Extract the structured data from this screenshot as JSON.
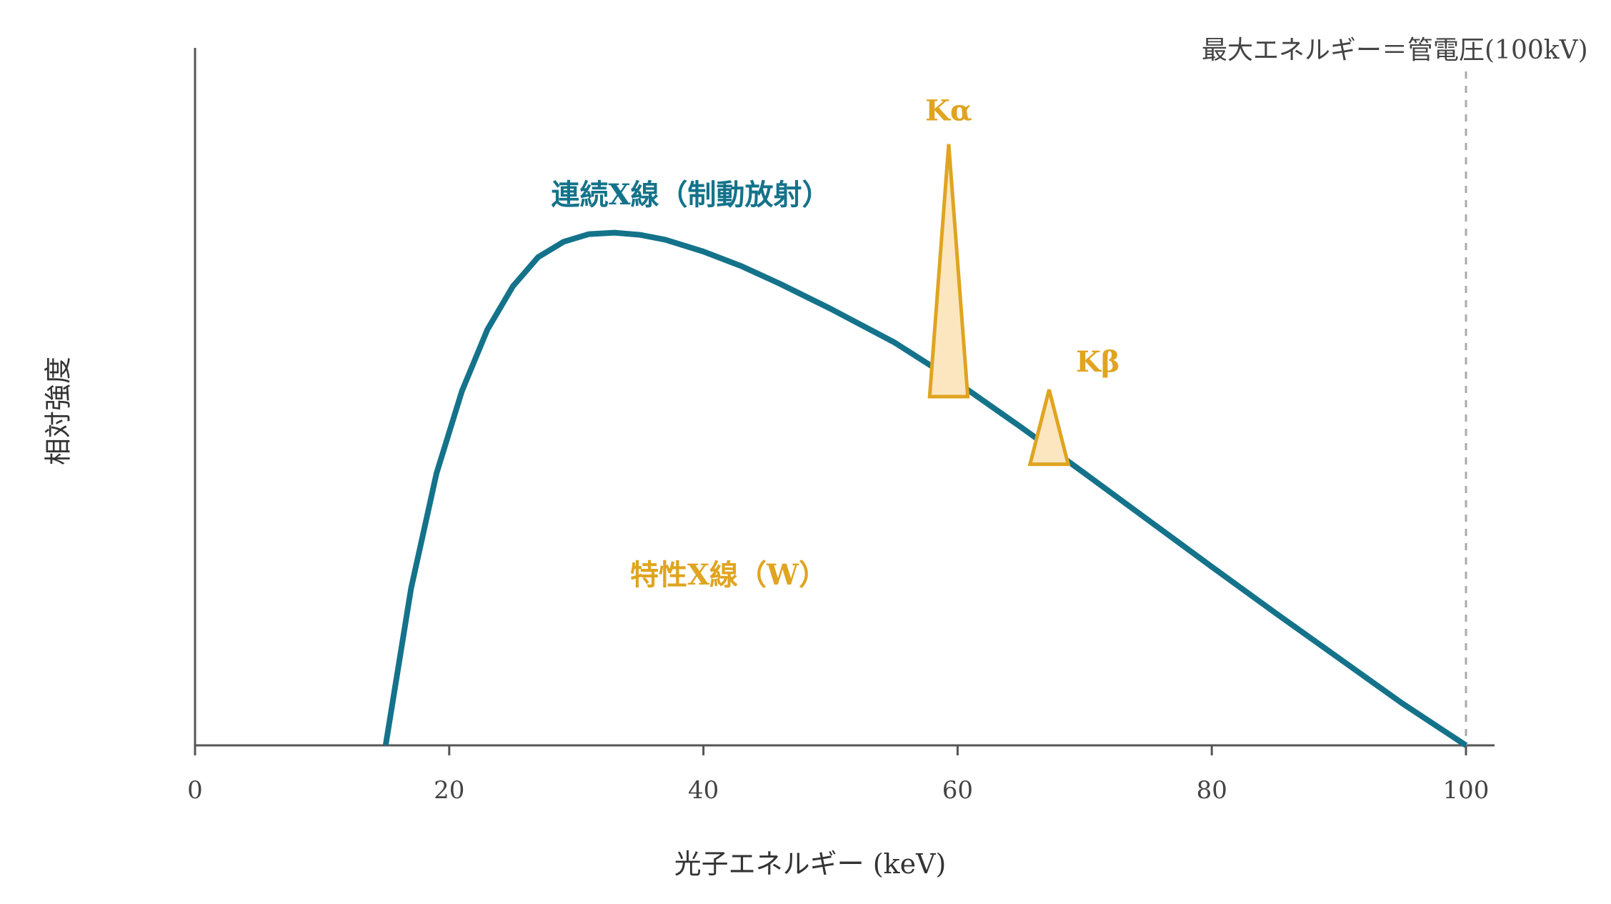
{
  "chart_data": {
    "type": "line",
    "title": "",
    "xlabel": "光子エネルギー (keV)",
    "ylabel": "相対強度",
    "xlim": [
      0,
      100
    ],
    "ylim": [
      0,
      1
    ],
    "xticks": [
      0,
      20,
      40,
      60,
      80,
      100
    ],
    "xtick_labels": [
      "0",
      "20",
      "40",
      "60",
      "80",
      "100"
    ],
    "grid": false,
    "series": [
      {
        "name": "連続X線（制動放射）",
        "x": [
          15,
          17,
          19,
          21,
          23,
          25,
          27,
          29,
          31,
          33,
          35,
          37,
          40,
          43,
          46,
          50,
          55,
          60,
          65,
          70,
          75,
          80,
          85,
          90,
          95,
          100
        ],
        "y": [
          0.0,
          0.225,
          0.39,
          0.508,
          0.596,
          0.658,
          0.7,
          0.722,
          0.733,
          0.735,
          0.732,
          0.725,
          0.708,
          0.687,
          0.662,
          0.626,
          0.578,
          0.52,
          0.456,
          0.39,
          0.323,
          0.256,
          0.19,
          0.125,
          0.06,
          0.0
        ],
        "color": "#14738a"
      }
    ],
    "peaks": [
      {
        "name": "Kα",
        "center": 59.3,
        "half_width": 1.5,
        "base": 0.5,
        "top": 0.862,
        "color": "#e0a420"
      },
      {
        "name": "Kβ",
        "center": 67.2,
        "half_width": 1.5,
        "base": 0.403,
        "top": 0.51,
        "color": "#e0a420"
      }
    ],
    "annotations": {
      "continuous": "連続X線（制動放射）",
      "characteristic": "特性X線（W）",
      "max_energy": "最大エネルギー＝管電圧(100kV)",
      "max_energy_x": 100
    },
    "colors": {
      "continuous": "#14738a",
      "characteristic": "#e0a420",
      "peak_fill": "#fbe6c0",
      "axis": "#555555",
      "reference_line": "#aaaaaa"
    }
  }
}
